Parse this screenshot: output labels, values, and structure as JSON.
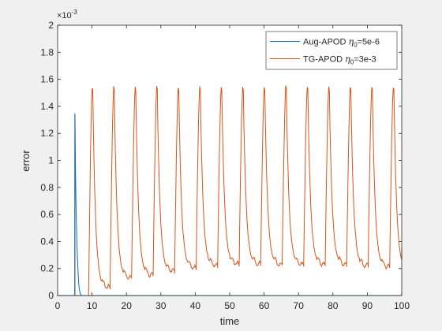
{
  "chart_data": {
    "type": "line",
    "xlabel": "time",
    "ylabel": "error",
    "xlim": [
      0,
      100
    ],
    "ylim": [
      0,
      0.002
    ],
    "exponent_label": "×10",
    "exponent_power": "-3",
    "x_ticks": [
      0,
      10,
      20,
      30,
      40,
      50,
      60,
      70,
      80,
      90,
      100
    ],
    "x_tick_labels": [
      "0",
      "10",
      "20",
      "30",
      "40",
      "50",
      "60",
      "70",
      "80",
      "90",
      "100"
    ],
    "y_ticks": [
      0,
      0.0002,
      0.0004,
      0.0006,
      0.0008,
      0.001,
      0.0012,
      0.0014,
      0.0016,
      0.0018,
      0.002
    ],
    "y_tick_labels": [
      "0",
      "0.2",
      "0.4",
      "0.6",
      "0.8",
      "1",
      "1.2",
      "1.4",
      "1.6",
      "1.8",
      "2"
    ],
    "grid": false,
    "legend_position": "top-right",
    "series": [
      {
        "name": "Aug-APOD η0=5e-6",
        "legend_prefix": "Aug-APOD ",
        "legend_symbol": "η",
        "legend_subscript": "0",
        "legend_suffix": "=5e-6",
        "color": "#0072BD",
        "x": [
          0,
          5,
          5.05,
          5.2,
          5.4,
          5.6,
          5.8,
          6.0,
          6.2,
          6.5,
          6.8,
          7.0,
          100
        ],
        "y": [
          0,
          0,
          0.00134,
          0.0009,
          0.0006,
          0.0004,
          0.00025,
          0.00014,
          7e-05,
          2e-05,
          5e-06,
          0,
          0
        ]
      },
      {
        "name": "TG-APOD η0=3e-3",
        "legend_prefix": "TG-APOD ",
        "legend_symbol": "η",
        "legend_subscript": "0",
        "legend_suffix": "=3e-3",
        "color": "#D95319",
        "first_spike": {
          "x": 5,
          "y": 0.00135
        },
        "start_x": 9.0,
        "period": 6.25,
        "peak": 0.00157,
        "trough": 0.00013,
        "trough_trend": [
          5e-05,
          0.00012,
          0.00014,
          0.00017,
          0.00019,
          0.00021,
          0.00022,
          0.00022,
          0.00022,
          0.00022,
          0.00022,
          0.00022,
          0.00021,
          0.0002,
          0.00019
        ]
      }
    ]
  }
}
